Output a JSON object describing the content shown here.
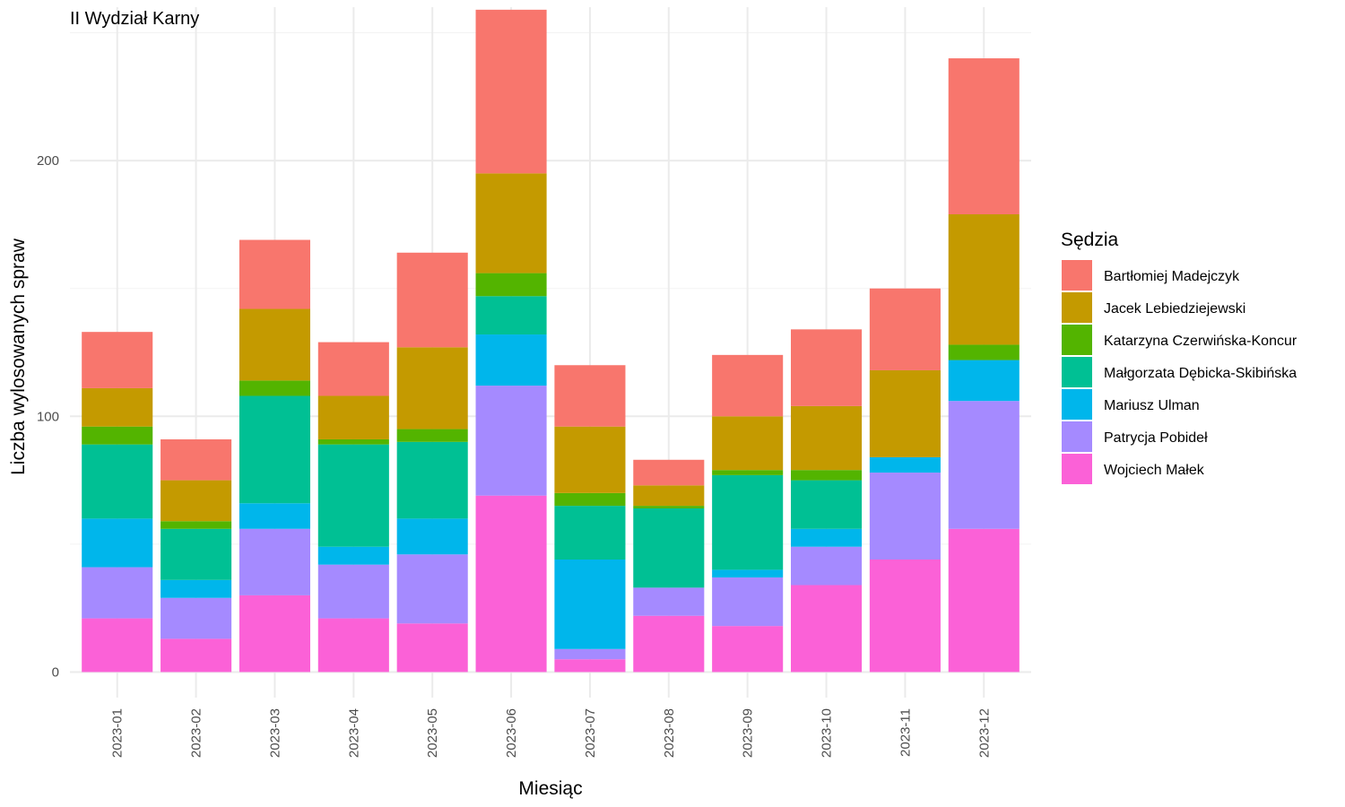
{
  "chart_data": {
    "type": "bar",
    "stacked": true,
    "title": "II Wydział Karny",
    "xlabel": "Miesiąc",
    "ylabel": "Liczba wylosowanych spraw",
    "ylim": [
      -10,
      260
    ],
    "yticks": [
      0,
      100,
      200
    ],
    "grid": true,
    "legend_title": "Sędzia",
    "legend_position": "right",
    "categories": [
      "2023-01",
      "2023-02",
      "2023-03",
      "2023-04",
      "2023-05",
      "2023-06",
      "2023-07",
      "2023-08",
      "2023-09",
      "2023-10",
      "2023-11",
      "2023-12"
    ],
    "series": [
      {
        "name": "Wojciech Małek",
        "color": "#FB61D7",
        "values": [
          21,
          13,
          30,
          21,
          19,
          69,
          5,
          22,
          18,
          34,
          44,
          56
        ]
      },
      {
        "name": "Patrycja Pobideł",
        "color": "#A58AFF",
        "values": [
          20,
          16,
          26,
          21,
          27,
          43,
          4,
          11,
          19,
          15,
          34,
          50
        ]
      },
      {
        "name": "Mariusz Ulman",
        "color": "#00B6EB",
        "values": [
          19,
          7,
          10,
          7,
          14,
          20,
          35,
          0,
          3,
          7,
          6,
          16
        ]
      },
      {
        "name": "Małgorzata Dębicka-Skibińska",
        "color": "#00C094",
        "values": [
          29,
          20,
          42,
          40,
          30,
          15,
          21,
          31,
          37,
          19,
          0,
          0
        ]
      },
      {
        "name": "Katarzyna Czerwińska-Koncur",
        "color": "#53B400",
        "values": [
          7,
          3,
          6,
          2,
          5,
          9,
          5,
          1,
          2,
          4,
          0,
          6
        ]
      },
      {
        "name": "Jacek Lebiedziejewski",
        "color": "#C49A00",
        "values": [
          15,
          16,
          28,
          17,
          32,
          39,
          26,
          8,
          21,
          25,
          34,
          51
        ]
      },
      {
        "name": "Bartłomiej Madejczyk",
        "color": "#F8766D",
        "values": [
          22,
          16,
          27,
          21,
          37,
          64,
          24,
          10,
          24,
          30,
          32,
          61
        ]
      }
    ],
    "legend_order": [
      "Bartłomiej Madejczyk",
      "Jacek Lebiedziejewski",
      "Katarzyna Czerwińska-Koncur",
      "Małgorzata Dębicka-Skibińska",
      "Mariusz Ulman",
      "Patrycja Pobideł",
      "Wojciech Małek"
    ]
  }
}
